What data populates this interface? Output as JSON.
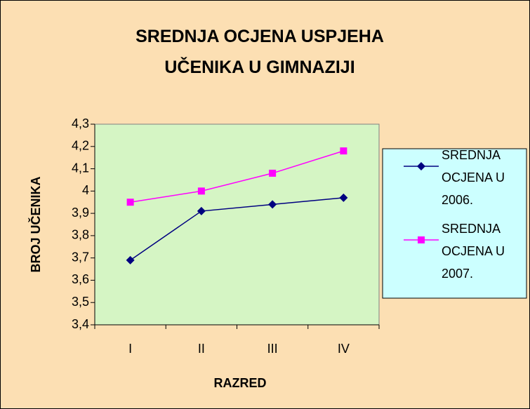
{
  "chart_data": {
    "type": "line",
    "title": "SREDNJA OCJENA USPJEHA UČENIKA U GIMNAZIJI",
    "x_label": "RAZRED",
    "y_label": "BROJ UČENIKA",
    "categories": [
      "I",
      "II",
      "III",
      "IV"
    ],
    "series": [
      {
        "name": "SREDNJA OCJENA U 2006.",
        "color": "#000080",
        "marker": "diamond",
        "values": [
          3.69,
          3.91,
          3.94,
          3.97
        ]
      },
      {
        "name": "SREDNJA OCJENA U 2007.",
        "color": "#FF00FF",
        "marker": "square",
        "values": [
          3.95,
          4.0,
          4.08,
          4.18
        ]
      }
    ],
    "ylim": [
      3.4,
      4.3
    ],
    "yticks": [
      {
        "value": 3.4,
        "label": "3,4"
      },
      {
        "value": 3.5,
        "label": "3,5"
      },
      {
        "value": 3.6,
        "label": "3,6"
      },
      {
        "value": 3.7,
        "label": "3,7"
      },
      {
        "value": 3.8,
        "label": "3,8"
      },
      {
        "value": 3.9,
        "label": "3,9"
      },
      4,
      {
        "value": 4.1,
        "label": "4,1"
      },
      {
        "value": 4.2,
        "label": "4,2"
      },
      {
        "value": 4.3,
        "label": "4,3"
      }
    ],
    "legend": "right"
  }
}
